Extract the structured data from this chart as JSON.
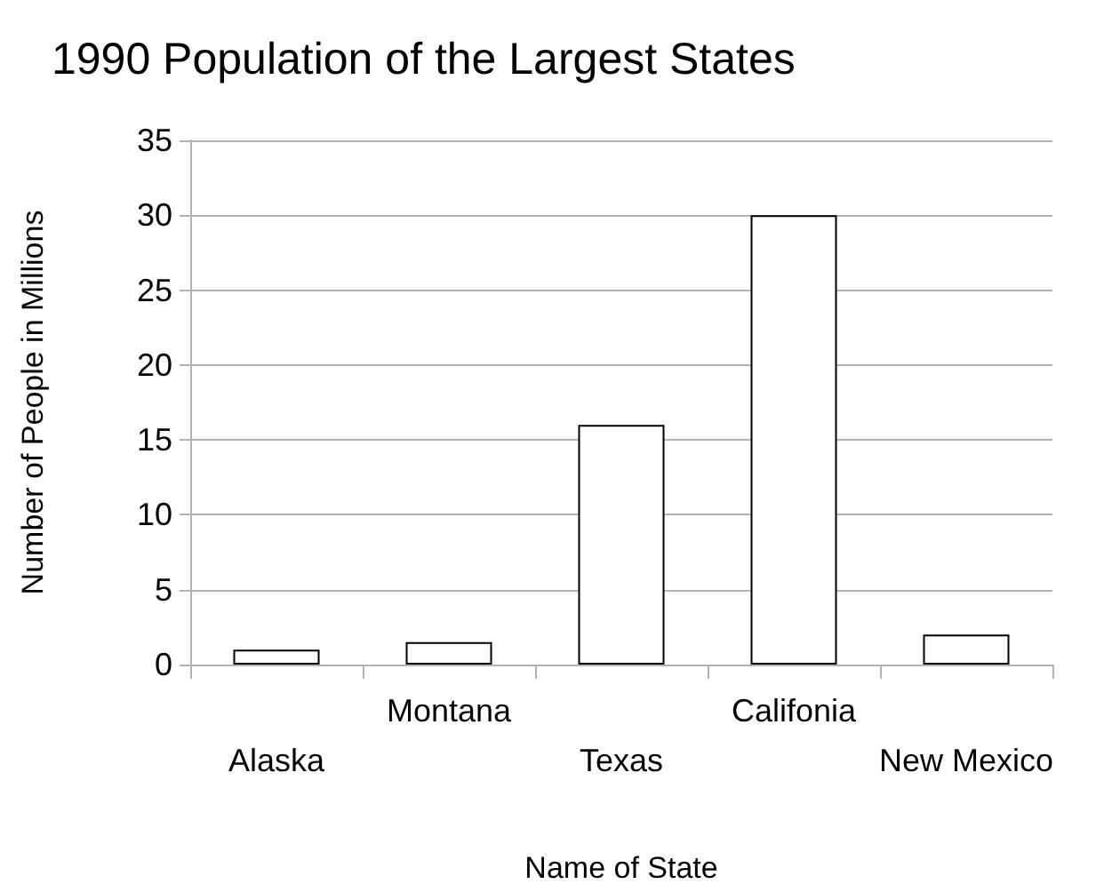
{
  "chart_data": {
    "type": "bar",
    "title": "1990 Population of the Largest States",
    "xlabel": "Name of State",
    "ylabel": "Number of People in Millions",
    "categories": [
      "Alaska",
      "Montana",
      "Texas",
      "Califonia",
      "New Mexico"
    ],
    "values": [
      1,
      1.5,
      16,
      30,
      2
    ],
    "color": "#ffffff",
    "ylim": [
      0,
      35
    ],
    "yticks": [
      0,
      5,
      10,
      15,
      20,
      25,
      30,
      35
    ],
    "grid": "y"
  }
}
